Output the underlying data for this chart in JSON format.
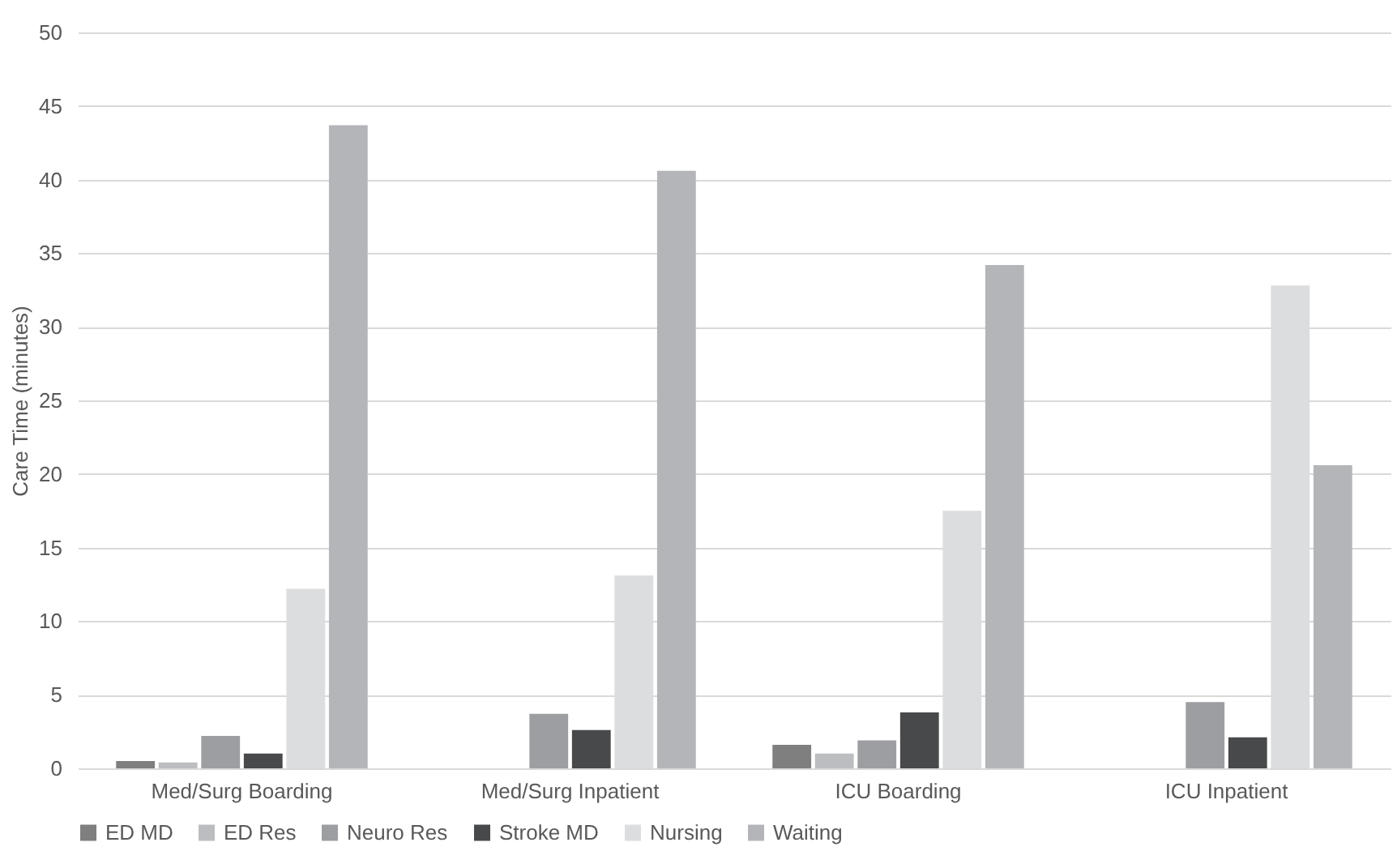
{
  "chart_data": {
    "type": "bar",
    "ylabel": "Care Time (minutes)",
    "categories": [
      "Med/Surg Boarding",
      "Med/Surg Inpatient",
      "ICU Boarding",
      "ICU Inpatient"
    ],
    "series": [
      {
        "name": "ED MD",
        "color": "#7f7f80",
        "values": [
          0.5,
          null,
          1.6,
          null
        ]
      },
      {
        "name": "ED Res",
        "color": "#bcbdc0",
        "values": [
          0.4,
          null,
          1.0,
          null
        ]
      },
      {
        "name": "Neuro Res",
        "color": "#9d9ea1",
        "values": [
          2.2,
          3.7,
          1.9,
          4.5
        ]
      },
      {
        "name": "Stroke MD",
        "color": "#48494b",
        "values": [
          1.0,
          2.6,
          3.8,
          2.1
        ]
      },
      {
        "name": "Nursing",
        "color": "#dcdddf",
        "values": [
          12.2,
          13.1,
          17.5,
          32.8
        ]
      },
      {
        "name": "Waiting",
        "color": "#b4b5b8",
        "values": [
          43.7,
          40.6,
          34.2,
          20.6
        ]
      }
    ],
    "ylim": [
      0,
      50
    ],
    "yticks": [
      0,
      5,
      10,
      15,
      20,
      25,
      30,
      35,
      40,
      45,
      50
    ],
    "grid": "y",
    "legend": "bottom"
  }
}
